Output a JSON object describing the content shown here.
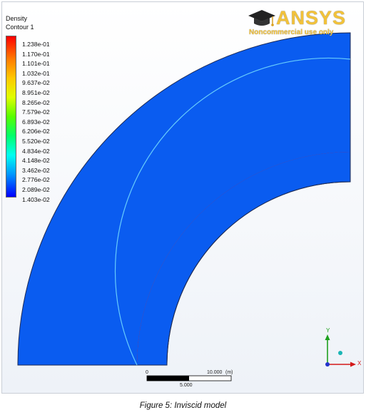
{
  "legend": {
    "variable": "Density",
    "contour_name": "Contour 1",
    "values": [
      "1.238e-01",
      "1.170e-01",
      "1.101e-01",
      "1.032e-01",
      "9.637e-02",
      "8.951e-02",
      "8.265e-02",
      "7.579e-02",
      "6.893e-02",
      "6.206e-02",
      "5.520e-02",
      "4.834e-02",
      "4.148e-02",
      "3.462e-02",
      "2.776e-02",
      "2.089e-02",
      "1.403e-02"
    ]
  },
  "logo": {
    "brand": "ANSYS",
    "subtitle": "Noncommercial use only"
  },
  "scale": {
    "start": "0",
    "end": "10.000",
    "unit": "(m)",
    "mid": "5.000"
  },
  "axes": {
    "x": "X",
    "y": "Y"
  },
  "caption": "Figure 5: Inviscid model",
  "colors": {
    "freestream": "#0a5cf0",
    "shock_high": "#ff2000",
    "accent_logo": "#f2c23a"
  }
}
